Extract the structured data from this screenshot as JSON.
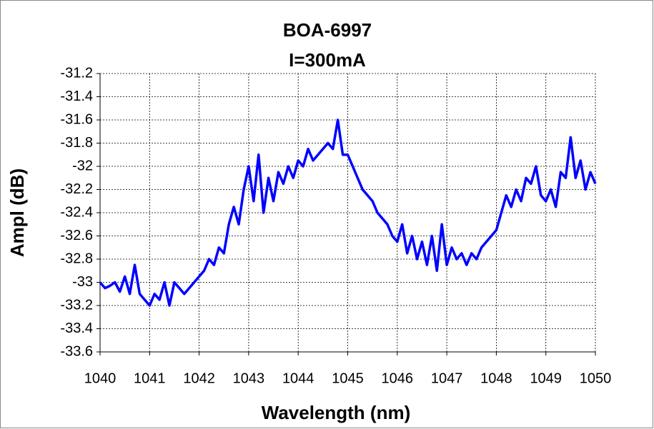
{
  "chart_data": {
    "type": "line",
    "title": "BOA-6997",
    "subtitle": "I=300mA",
    "x_label": "Wavelength (nm)",
    "y_label": "Ampl (dB)",
    "xlim": [
      1040,
      1050
    ],
    "xticks": [
      1040,
      1041,
      1042,
      1043,
      1044,
      1045,
      1046,
      1047,
      1048,
      1049,
      1050
    ],
    "ylim": [
      -33.6,
      -31.2
    ],
    "yticks": [
      -31.2,
      -31.4,
      -31.6,
      -31.8,
      -32,
      -32.2,
      -32.4,
      -32.6,
      -32.8,
      -33,
      -33.2,
      -33.4,
      -33.6
    ],
    "grid": true,
    "x": [
      1040.0,
      1040.1,
      1040.2,
      1040.3,
      1040.4,
      1040.5,
      1040.6,
      1040.7,
      1040.8,
      1040.9,
      1041.0,
      1041.1,
      1041.2,
      1041.3,
      1041.4,
      1041.5,
      1041.6,
      1041.7,
      1041.8,
      1041.9,
      1042.0,
      1042.1,
      1042.2,
      1042.3,
      1042.4,
      1042.5,
      1042.6,
      1042.7,
      1042.8,
      1042.9,
      1043.0,
      1043.1,
      1043.2,
      1043.3,
      1043.4,
      1043.5,
      1043.6,
      1043.7,
      1043.8,
      1043.9,
      1044.0,
      1044.1,
      1044.2,
      1044.3,
      1044.4,
      1044.5,
      1044.6,
      1044.7,
      1044.8,
      1044.9,
      1045.0,
      1045.1,
      1045.2,
      1045.3,
      1045.4,
      1045.5,
      1045.6,
      1045.7,
      1045.8,
      1045.9,
      1046.0,
      1046.1,
      1046.2,
      1046.3,
      1046.4,
      1046.5,
      1046.6,
      1046.7,
      1046.8,
      1046.9,
      1047.0,
      1047.1,
      1047.2,
      1047.3,
      1047.4,
      1047.5,
      1047.6,
      1047.7,
      1047.8,
      1047.9,
      1048.0,
      1048.1,
      1048.2,
      1048.3,
      1048.4,
      1048.5,
      1048.6,
      1048.7,
      1048.8,
      1048.9,
      1049.0,
      1049.1,
      1049.2,
      1049.3,
      1049.4,
      1049.5,
      1049.6,
      1049.7,
      1049.8,
      1049.9,
      1050.0
    ],
    "series": [
      {
        "color": "#0000ff",
        "values": [
          -33.0,
          -33.05,
          -33.03,
          -33.0,
          -33.08,
          -32.95,
          -33.1,
          -32.85,
          -33.1,
          -33.15,
          -33.2,
          -33.1,
          -33.15,
          -33.0,
          -33.2,
          -33.0,
          -33.05,
          -33.1,
          -33.05,
          -33.0,
          -32.95,
          -32.9,
          -32.8,
          -32.85,
          -32.7,
          -32.75,
          -32.5,
          -32.35,
          -32.5,
          -32.2,
          -32.0,
          -32.3,
          -31.9,
          -32.4,
          -32.1,
          -32.3,
          -32.05,
          -32.15,
          -32.0,
          -32.1,
          -31.95,
          -32.0,
          -31.85,
          -31.95,
          -31.9,
          -31.85,
          -31.8,
          -31.85,
          -31.6,
          -31.9,
          -31.9,
          -32.0,
          -32.1,
          -32.2,
          -32.25,
          -32.3,
          -32.4,
          -32.45,
          -32.5,
          -32.6,
          -32.65,
          -32.5,
          -32.75,
          -32.6,
          -32.8,
          -32.65,
          -32.85,
          -32.6,
          -32.9,
          -32.5,
          -32.85,
          -32.7,
          -32.8,
          -32.75,
          -32.85,
          -32.75,
          -32.8,
          -32.7,
          -32.65,
          -32.6,
          -32.55,
          -32.4,
          -32.25,
          -32.35,
          -32.2,
          -32.3,
          -32.1,
          -32.15,
          -32.0,
          -32.25,
          -32.3,
          -32.2,
          -32.35,
          -32.05,
          -32.1,
          -31.75,
          -32.1,
          -31.95,
          -32.2,
          -32.05,
          -32.15
        ]
      }
    ]
  }
}
